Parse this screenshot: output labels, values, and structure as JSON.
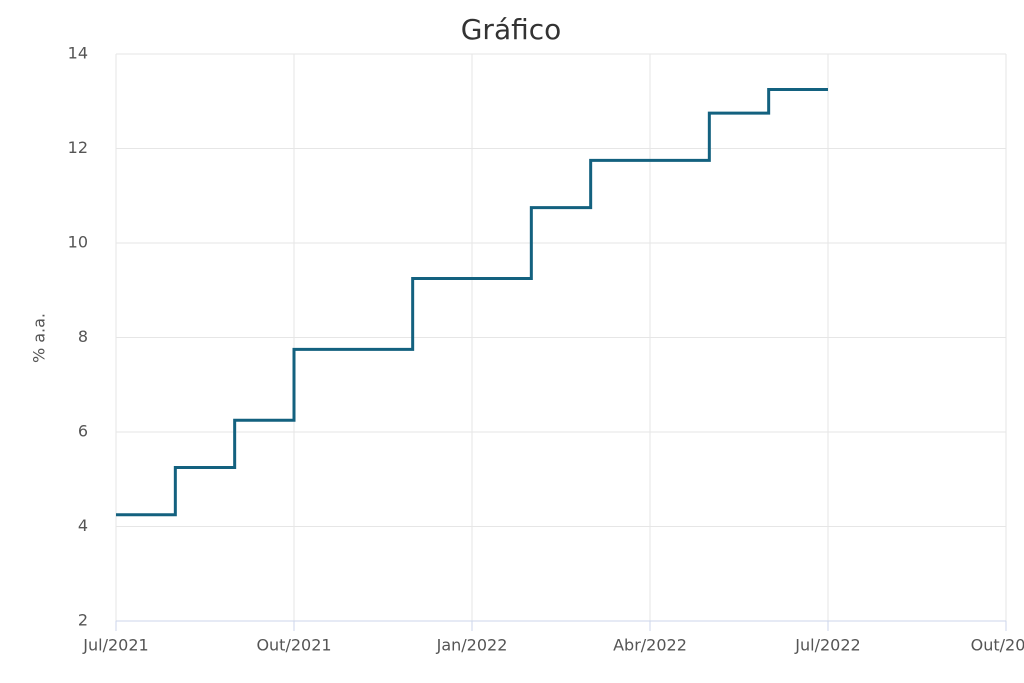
{
  "chart_data": {
    "type": "line",
    "step": "after",
    "title": "Gráfico",
    "y_label": "% a.a.",
    "x": [
      "2021-07",
      "2021-08",
      "2021-09",
      "2021-10",
      "2021-12",
      "2022-02",
      "2022-03",
      "2022-05",
      "2022-06",
      "2022-07"
    ],
    "values": [
      4.25,
      5.25,
      6.25,
      7.75,
      9.25,
      10.75,
      11.75,
      12.75,
      13.25,
      13.25
    ],
    "color": "#13617f",
    "xlim": [
      "2021-07",
      "2022-10"
    ],
    "xticks": [
      {
        "value": "2021-07",
        "label": "Jul/2021"
      },
      {
        "value": "2021-10",
        "label": "Out/2021"
      },
      {
        "value": "2022-01",
        "label": "Jan/2022"
      },
      {
        "value": "2022-04",
        "label": "Abr/2022"
      },
      {
        "value": "2022-07",
        "label": "Jul/2022"
      },
      {
        "value": "2022-10",
        "label": "Out/20…"
      }
    ],
    "ylim": [
      2,
      14
    ],
    "yticks": [
      2,
      4,
      6,
      8,
      10,
      12,
      14
    ],
    "grid": true
  }
}
